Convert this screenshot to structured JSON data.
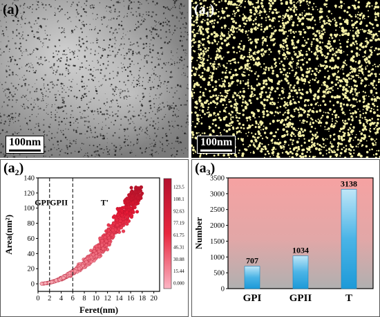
{
  "panels": {
    "a": {
      "letter": "a",
      "scale_bar": "100nm"
    },
    "a1": {
      "letter": "a",
      "sub": "1",
      "scale_bar": "100nm"
    },
    "a2": {
      "letter": "a",
      "sub": "2"
    },
    "a3": {
      "letter": "a",
      "sub": "3"
    }
  },
  "colors": {
    "scatter": "#e8283f",
    "bar": "#4ab4e6",
    "particle": "#f2eea3",
    "bg3_top": "#f6a2a2",
    "bg3_bottom": "#b0b0b0"
  },
  "chart_data": [
    {
      "type": "scatter",
      "xlabel": "Feret(nm)",
      "ylabel": "Area(nm²)",
      "xlim": [
        0,
        21
      ],
      "ylim": [
        -10,
        140
      ],
      "xticks": [
        "0",
        "2",
        "4",
        "6",
        "8",
        "10",
        "12",
        "14",
        "16",
        "18",
        "20"
      ],
      "yticks": [
        "0",
        "20",
        "40",
        "60",
        "80",
        "100",
        "120",
        "140"
      ],
      "dividers": [
        2,
        6
      ],
      "region_labels": [
        "GPI",
        "GPII",
        "T'"
      ],
      "colorbar_ticks": [
        "123.5",
        "108.1",
        "92.63",
        "77.19",
        "61.75",
        "46.31",
        "30.88",
        "15.44",
        "0.000"
      ],
      "grid": false
    },
    {
      "type": "bar",
      "categories": [
        "GPI",
        "GPII",
        "T"
      ],
      "values": [
        707,
        1034,
        3138
      ],
      "value_labels": [
        "707",
        "1034",
        "3138"
      ],
      "ylabel": "Number",
      "ylim": [
        0,
        3500
      ],
      "yticks": [
        "0",
        "500",
        "1000",
        "1500",
        "2000",
        "2500",
        "3000",
        "3500"
      ],
      "grid": false
    }
  ]
}
